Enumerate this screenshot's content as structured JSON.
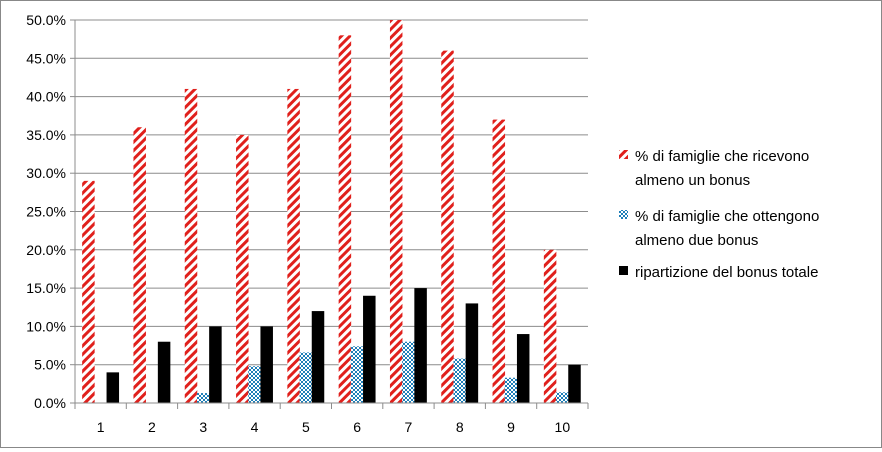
{
  "chart_data": {
    "type": "bar",
    "categories": [
      "1",
      "2",
      "3",
      "4",
      "5",
      "6",
      "7",
      "8",
      "9",
      "10"
    ],
    "ylim": [
      0,
      0.5
    ],
    "ytick_values": [
      0,
      0.05,
      0.1,
      0.15,
      0.2,
      0.25,
      0.3,
      0.35,
      0.4,
      0.45,
      0.5
    ],
    "ytick_labels": [
      "0.0%",
      "5.0%",
      "10.0%",
      "15.0%",
      "20.0%",
      "25.0%",
      "30.0%",
      "35.0%",
      "40.0%",
      "45.0%",
      "50.0%"
    ],
    "grid": "horizontal major gridlines",
    "legend_position": "right",
    "series": [
      {
        "name_lines": [
          "% di famiglie che ricevono",
          "almeno un bonus"
        ],
        "values": [
          0.29,
          0.36,
          0.41,
          0.35,
          0.41,
          0.48,
          0.5,
          0.46,
          0.37,
          0.2
        ],
        "color": "#e0201c",
        "pattern": "diagonal-stripes"
      },
      {
        "name_lines": [
          "% di famiglie che ottengono",
          "almeno due bonus"
        ],
        "values": [
          0.0,
          0.0,
          0.013,
          0.048,
          0.066,
          0.074,
          0.08,
          0.058,
          0.033,
          0.014
        ],
        "color": "#1f7fb8",
        "pattern": "checker"
      },
      {
        "name_lines": [
          "ripartizione del bonus totale"
        ],
        "values": [
          0.04,
          0.08,
          0.1,
          0.1,
          0.12,
          0.14,
          0.15,
          0.13,
          0.09,
          0.05
        ],
        "color": "#000000",
        "pattern": "solid"
      }
    ]
  }
}
